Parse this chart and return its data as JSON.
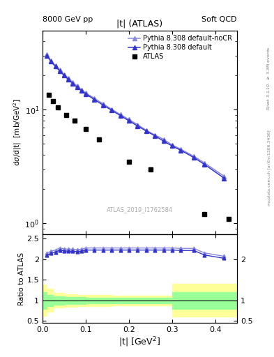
{
  "title_left": "8000 GeV pp",
  "title_right": "Soft QCD",
  "plot_title": "|t| (ATLAS)",
  "xlabel": "|t| [GeV$^{2}$]",
  "ylabel_main": "d$\\sigma$/d|t|  [mb/GeV$^{2}$]",
  "ylabel_ratio": "Ratio to ATLAS",
  "watermark": "ATLAS_2019_I1762584",
  "right_label": "mcplots.cern.ch [arXiv:1306.3436]",
  "right_label2": "Rivet 3.1.10, $\\geq$ 3.3M events",
  "atlas_x": [
    0.015,
    0.025,
    0.035,
    0.055,
    0.075,
    0.1,
    0.13,
    0.2,
    0.25,
    0.375,
    0.43
  ],
  "atlas_y": [
    13.5,
    12.0,
    10.5,
    9.0,
    8.0,
    6.8,
    5.5,
    3.5,
    3.0,
    1.2,
    1.1
  ],
  "pythia_default_x": [
    0.01,
    0.02,
    0.03,
    0.04,
    0.05,
    0.06,
    0.07,
    0.08,
    0.09,
    0.1,
    0.12,
    0.14,
    0.16,
    0.18,
    0.2,
    0.22,
    0.24,
    0.26,
    0.28,
    0.3,
    0.32,
    0.35,
    0.375,
    0.42
  ],
  "pythia_default_y": [
    30.0,
    26.5,
    24.0,
    22.0,
    20.0,
    18.5,
    17.0,
    15.8,
    14.7,
    13.8,
    12.3,
    11.0,
    9.9,
    8.9,
    8.0,
    7.2,
    6.5,
    5.9,
    5.3,
    4.8,
    4.4,
    3.8,
    3.3,
    2.5
  ],
  "pythia_noCR_x": [
    0.01,
    0.02,
    0.03,
    0.04,
    0.05,
    0.06,
    0.07,
    0.08,
    0.09,
    0.1,
    0.12,
    0.14,
    0.16,
    0.18,
    0.2,
    0.22,
    0.24,
    0.26,
    0.28,
    0.3,
    0.32,
    0.35,
    0.375,
    0.42
  ],
  "pythia_noCR_y": [
    30.5,
    27.0,
    24.5,
    22.5,
    20.5,
    19.0,
    17.5,
    16.2,
    15.0,
    14.1,
    12.6,
    11.3,
    10.1,
    9.1,
    8.2,
    7.4,
    6.6,
    6.0,
    5.5,
    4.9,
    4.5,
    3.9,
    3.4,
    2.6
  ],
  "ratio_default_x": [
    0.01,
    0.02,
    0.03,
    0.04,
    0.05,
    0.06,
    0.07,
    0.08,
    0.09,
    0.1,
    0.12,
    0.14,
    0.16,
    0.18,
    0.2,
    0.22,
    0.24,
    0.26,
    0.28,
    0.3,
    0.32,
    0.35,
    0.375,
    0.42
  ],
  "ratio_default_y": [
    2.1,
    2.14,
    2.17,
    2.22,
    2.2,
    2.19,
    2.19,
    2.18,
    2.19,
    2.22,
    2.22,
    2.22,
    2.22,
    2.22,
    2.22,
    2.22,
    2.22,
    2.22,
    2.22,
    2.22,
    2.21,
    2.21,
    2.1,
    2.02
  ],
  "ratio_noCR_x": [
    0.01,
    0.02,
    0.03,
    0.04,
    0.05,
    0.06,
    0.07,
    0.08,
    0.09,
    0.1,
    0.12,
    0.14,
    0.16,
    0.18,
    0.2,
    0.22,
    0.24,
    0.26,
    0.28,
    0.3,
    0.32,
    0.35,
    0.375,
    0.42
  ],
  "ratio_noCR_y": [
    2.15,
    2.19,
    2.22,
    2.27,
    2.25,
    2.24,
    2.24,
    2.23,
    2.24,
    2.27,
    2.27,
    2.27,
    2.27,
    2.27,
    2.27,
    2.27,
    2.27,
    2.27,
    2.27,
    2.27,
    2.26,
    2.26,
    2.15,
    2.07
  ],
  "band_x": [
    0.0,
    0.01,
    0.025,
    0.05,
    0.08,
    0.1,
    0.13,
    0.16,
    0.2,
    0.25,
    0.28,
    0.3,
    0.45
  ],
  "band_yellow_lo": [
    0.62,
    0.72,
    0.82,
    0.85,
    0.86,
    0.87,
    0.87,
    0.88,
    0.88,
    0.88,
    0.88,
    0.6,
    0.6
  ],
  "band_yellow_hi": [
    1.38,
    1.28,
    1.18,
    1.15,
    1.14,
    1.13,
    1.13,
    1.12,
    1.12,
    1.12,
    1.12,
    1.4,
    1.4
  ],
  "band_green_lo": [
    0.8,
    0.86,
    0.9,
    0.92,
    0.92,
    0.93,
    0.93,
    0.93,
    0.93,
    0.93,
    0.93,
    0.8,
    0.8
  ],
  "band_green_hi": [
    1.2,
    1.14,
    1.1,
    1.08,
    1.08,
    1.07,
    1.07,
    1.07,
    1.07,
    1.07,
    1.07,
    1.2,
    1.2
  ],
  "xlim": [
    0.0,
    0.45
  ],
  "ylim_main": [
    0.8,
    50
  ],
  "ylim_ratio": [
    0.45,
    2.6
  ],
  "color_atlas": "black",
  "color_pythia_default": "#3333cc",
  "color_pythia_noCR": "#8888dd",
  "color_yellow": "#ffff99",
  "color_green": "#99ff99"
}
